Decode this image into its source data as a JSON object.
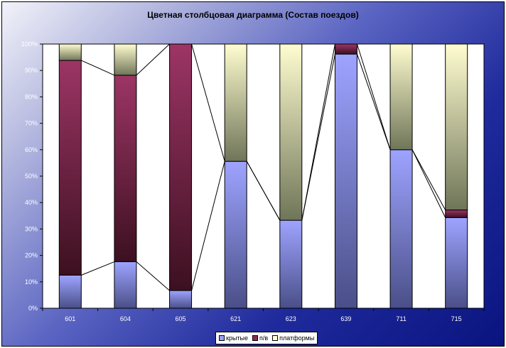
{
  "chart_data": {
    "type": "bar",
    "stacked": true,
    "percent": true,
    "title": "Цветная столбцовая диаграмма (Состав поездов)",
    "categories": [
      "601",
      "604",
      "605",
      "621",
      "623",
      "639",
      "711",
      "715"
    ],
    "series": [
      {
        "name": "крытые",
        "values": [
          12.5,
          17.6,
          6.7,
          55.6,
          33.3,
          96.2,
          60.0,
          34.3
        ],
        "color": "#9aa0ff"
      },
      {
        "name": "п/в",
        "values": [
          81.3,
          70.6,
          93.3,
          0,
          0,
          3.8,
          0,
          2.9
        ],
        "color": "#8c2a58"
      },
      {
        "name": "платформы",
        "values": [
          6.2,
          11.8,
          0,
          44.4,
          66.7,
          0,
          40.0,
          62.8
        ],
        "color": "#fffdd0"
      }
    ],
    "ylim": [
      0,
      100
    ],
    "yticks": [
      "0%",
      "10%",
      "20%",
      "30%",
      "40%",
      "50%",
      "60%",
      "70%",
      "80%",
      "90%",
      "100%"
    ],
    "legend_position": "bottom",
    "series_lines": true
  }
}
